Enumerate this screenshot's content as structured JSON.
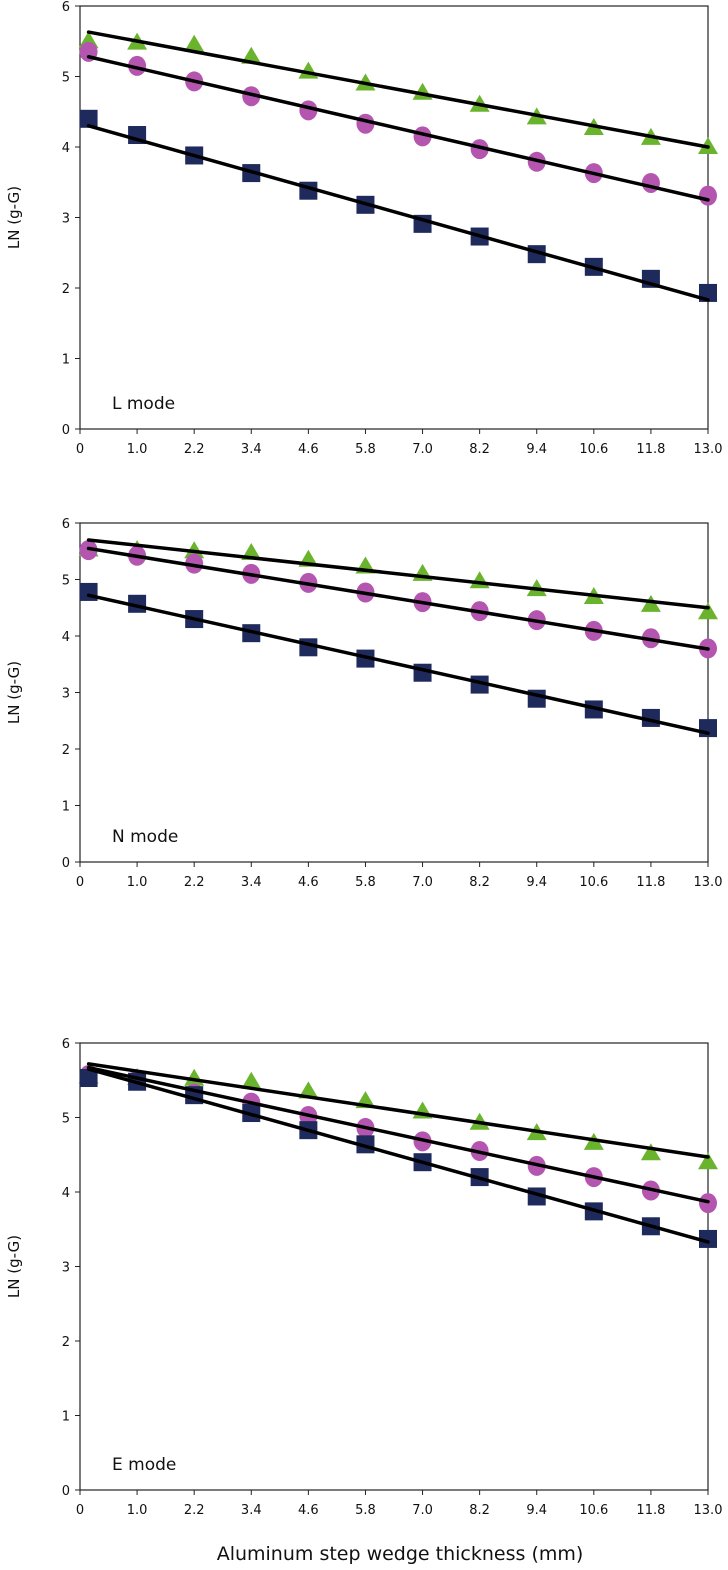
{
  "chart_data": [
    {
      "type": "scatter",
      "title": "L mode",
      "ylabel": "LN (g-G)",
      "xlabel": "Aluminum step wedge thickness (mm)",
      "categories": [
        "0",
        "1.0",
        "2.2",
        "3.4",
        "4.6",
        "5.8",
        "7.0",
        "8.2",
        "9.4",
        "10.6",
        "11.8",
        "13.0"
      ],
      "yticks": [
        "0",
        "1",
        "2",
        "3",
        "4",
        "5",
        "6"
      ],
      "ylim": [
        0,
        6
      ],
      "series": [
        {
          "name": "triangle",
          "marker": "triangle",
          "color": "#6ab42d",
          "values": [
            5.5,
            5.48,
            5.45,
            5.28,
            5.07,
            4.9,
            4.77,
            4.6,
            4.42,
            4.27,
            4.13,
            4.0
          ],
          "trend": [
            5.63,
            4.0
          ]
        },
        {
          "name": "circle",
          "marker": "circle",
          "color": "#b456b0",
          "values": [
            5.35,
            5.15,
            4.93,
            4.72,
            4.52,
            4.33,
            4.15,
            3.97,
            3.79,
            3.63,
            3.49,
            3.31
          ],
          "trend": [
            5.28,
            3.25
          ]
        },
        {
          "name": "square",
          "marker": "square",
          "color": "#1f2a5c",
          "values": [
            4.4,
            4.17,
            3.88,
            3.63,
            3.38,
            3.18,
            2.91,
            2.73,
            2.48,
            2.3,
            2.13,
            1.93
          ],
          "trend": [
            4.3,
            1.83
          ]
        }
      ]
    },
    {
      "type": "scatter",
      "title": "N mode",
      "ylabel": "LN (g-G)",
      "categories": [
        "0",
        "1.0",
        "2.2",
        "3.4",
        "4.6",
        "5.8",
        "7.0",
        "8.2",
        "9.4",
        "10.6",
        "11.8",
        "13.0"
      ],
      "yticks": [
        "0",
        "1",
        "2",
        "3",
        "4",
        "5",
        "6"
      ],
      "ylim": [
        0,
        6
      ],
      "series": [
        {
          "name": "triangle",
          "marker": "triangle",
          "color": "#6ab42d",
          "values": [
            5.53,
            5.52,
            5.5,
            5.47,
            5.35,
            5.23,
            5.1,
            4.97,
            4.83,
            4.69,
            4.55,
            4.42
          ],
          "trend": [
            5.7,
            4.5
          ]
        },
        {
          "name": "circle",
          "marker": "circle",
          "color": "#b456b0",
          "values": [
            5.52,
            5.42,
            5.28,
            5.1,
            4.94,
            4.77,
            4.6,
            4.44,
            4.28,
            4.09,
            3.96,
            3.78
          ],
          "trend": [
            5.55,
            3.77
          ]
        },
        {
          "name": "square",
          "marker": "square",
          "color": "#1f2a5c",
          "values": [
            4.78,
            4.57,
            4.3,
            4.05,
            3.8,
            3.6,
            3.35,
            3.14,
            2.89,
            2.7,
            2.55,
            2.37
          ],
          "trend": [
            4.72,
            2.28
          ]
        }
      ]
    },
    {
      "type": "scatter",
      "title": "E mode",
      "ylabel": "LN (g-G)",
      "categories": [
        "0",
        "1.0",
        "2.2",
        "3.4",
        "4.6",
        "5.8",
        "7.0",
        "8.2",
        "9.4",
        "10.6",
        "11.8",
        "13.0"
      ],
      "yticks": [
        "0",
        "1",
        "2",
        "3",
        "4",
        "5",
        "6"
      ],
      "ylim": [
        0,
        6
      ],
      "series": [
        {
          "name": "triangle",
          "marker": "triangle",
          "color": "#6ab42d",
          "values": [
            5.55,
            5.53,
            5.52,
            5.48,
            5.35,
            5.22,
            5.08,
            4.93,
            4.79,
            4.66,
            4.52,
            4.4
          ],
          "trend": [
            5.72,
            4.47
          ]
        },
        {
          "name": "circle",
          "marker": "circle",
          "color": "#b456b0",
          "values": [
            5.57,
            5.5,
            5.32,
            5.2,
            5.02,
            4.86,
            4.68,
            4.55,
            4.35,
            4.2,
            4.02,
            3.85
          ],
          "trend": [
            5.67,
            3.87
          ]
        },
        {
          "name": "square",
          "marker": "square",
          "color": "#1f2a5c",
          "values": [
            5.53,
            5.48,
            5.3,
            5.06,
            4.83,
            4.64,
            4.4,
            4.2,
            3.94,
            3.74,
            3.54,
            3.37
          ],
          "trend": [
            5.65,
            3.33
          ]
        }
      ]
    }
  ],
  "xlabel": "Aluminum step wedge thickness (mm)"
}
